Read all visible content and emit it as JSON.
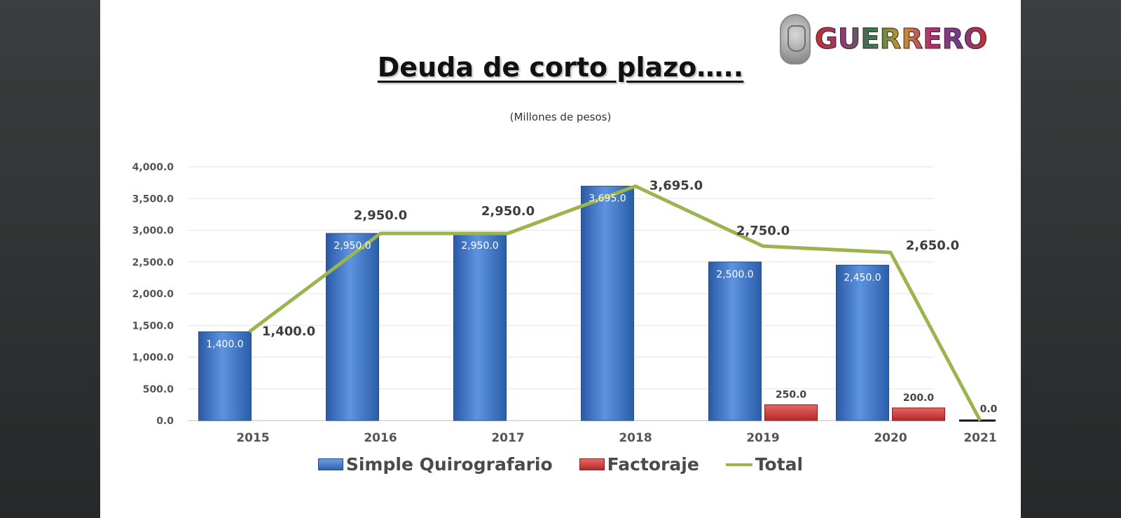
{
  "brand": {
    "logo_text": "GUERRERO",
    "seal_icon": "state-seal-icon"
  },
  "slide": {
    "title": "Deuda de corto plazo…..",
    "subtitle": "(Millones de pesos)"
  },
  "colors": {
    "simple": "#3a6fc2",
    "factoraje": "#c8302e",
    "total": "#9ab54f"
  },
  "chart_data": {
    "type": "bar",
    "categories": [
      "2015",
      "2016",
      "2017",
      "2018",
      "2019",
      "2020",
      "2021"
    ],
    "ylim": [
      0,
      4000
    ],
    "yticks": [
      "0.0",
      "500.0",
      "1,000.0",
      "1,500.0",
      "2,000.0",
      "2,500.0",
      "3,000.0",
      "3,500.0",
      "4,000.0"
    ],
    "grid": true,
    "legend_position": "bottom",
    "series": [
      {
        "name": "Simple Quirografario",
        "kind": "bar",
        "values": [
          1400,
          2950,
          2950,
          3695,
          2500,
          2450,
          0
        ],
        "labels": [
          "1,400.0",
          "2,950.0",
          "2,950.0",
          "3,695.0",
          "2,500.0",
          "2,450.0",
          ""
        ]
      },
      {
        "name": "Factoraje",
        "kind": "bar",
        "values": [
          0,
          0,
          0,
          0,
          250,
          200,
          0
        ],
        "labels": [
          "",
          "",
          "",
          "",
          "250.0",
          "200.0",
          "0.0"
        ]
      },
      {
        "name": "Total",
        "kind": "line",
        "values": [
          1400,
          2950,
          2950,
          3695,
          2750,
          2650,
          0
        ],
        "labels": [
          "1,400.0",
          "2,950.0",
          "2,950.0",
          "3,695.0",
          "2,750.0",
          "2,650.0",
          ""
        ]
      }
    ]
  }
}
